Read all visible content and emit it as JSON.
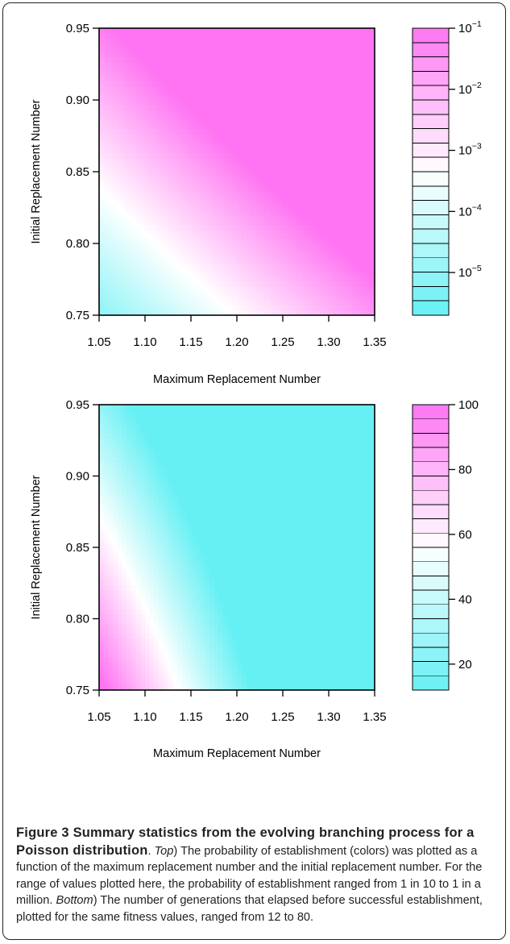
{
  "chart_data": [
    {
      "type": "heatmap",
      "xlabel": "Maximum Replacement Number",
      "ylabel": "Initial Replacement Number",
      "x_ticks": [
        "1.05",
        "1.10",
        "1.15",
        "1.20",
        "1.25",
        "1.30",
        "1.35"
      ],
      "y_ticks": [
        "0.75",
        "0.80",
        "0.85",
        "0.90",
        "0.95"
      ],
      "xlim": [
        1.05,
        1.35
      ],
      "ylim": [
        0.75,
        0.95
      ],
      "color_low": "#66f0f4",
      "color_mid": "#ffffff",
      "color_high": "#ff74f2",
      "colorbar": {
        "scale": "log",
        "levels": 20,
        "tick_values": [
          0.1,
          0.01,
          0.001,
          0.0001,
          1e-05
        ],
        "tick_labels": [
          {
            "base": "10",
            "exp": "−1"
          },
          {
            "base": "10",
            "exp": "−2"
          },
          {
            "base": "10",
            "exp": "−3"
          },
          {
            "base": "10",
            "exp": "−4"
          },
          {
            "base": "10",
            "exp": "−5"
          }
        ]
      }
    },
    {
      "type": "heatmap",
      "xlabel": "Maximum Replacement Number",
      "ylabel": "Initial Replacement Number",
      "x_ticks": [
        "1.05",
        "1.10",
        "1.15",
        "1.20",
        "1.25",
        "1.30",
        "1.35"
      ],
      "y_ticks": [
        "0.75",
        "0.80",
        "0.85",
        "0.90",
        "0.95"
      ],
      "xlim": [
        1.05,
        1.35
      ],
      "ylim": [
        0.75,
        0.95
      ],
      "color_low": "#66f0f4",
      "color_mid": "#ffffff",
      "color_high": "#ff74f2",
      "colorbar": {
        "scale": "linear",
        "levels": 20,
        "tick_values": [
          100,
          80,
          60,
          40,
          20
        ],
        "tick_labels": [
          "100",
          "80",
          "60",
          "40",
          "20"
        ]
      }
    }
  ],
  "caption": {
    "figure_label": "Figure 3 Summary statistics from the evolving branching process for a Poisson distribution",
    "sep1": ". ",
    "top_label": "Top",
    "top_text": ") The probability of establishment (colors) was plotted as a function of the maximum replacement number and the initial replacement number. For the range of values plotted here, the probability of establishment ranged from 1 in 10 to 1 in a million. ",
    "bottom_label": "Bottom",
    "bottom_text": ") The number of generations that elapsed before successful establishment, plotted for the same fitness values, ranged from 12 to 80."
  }
}
